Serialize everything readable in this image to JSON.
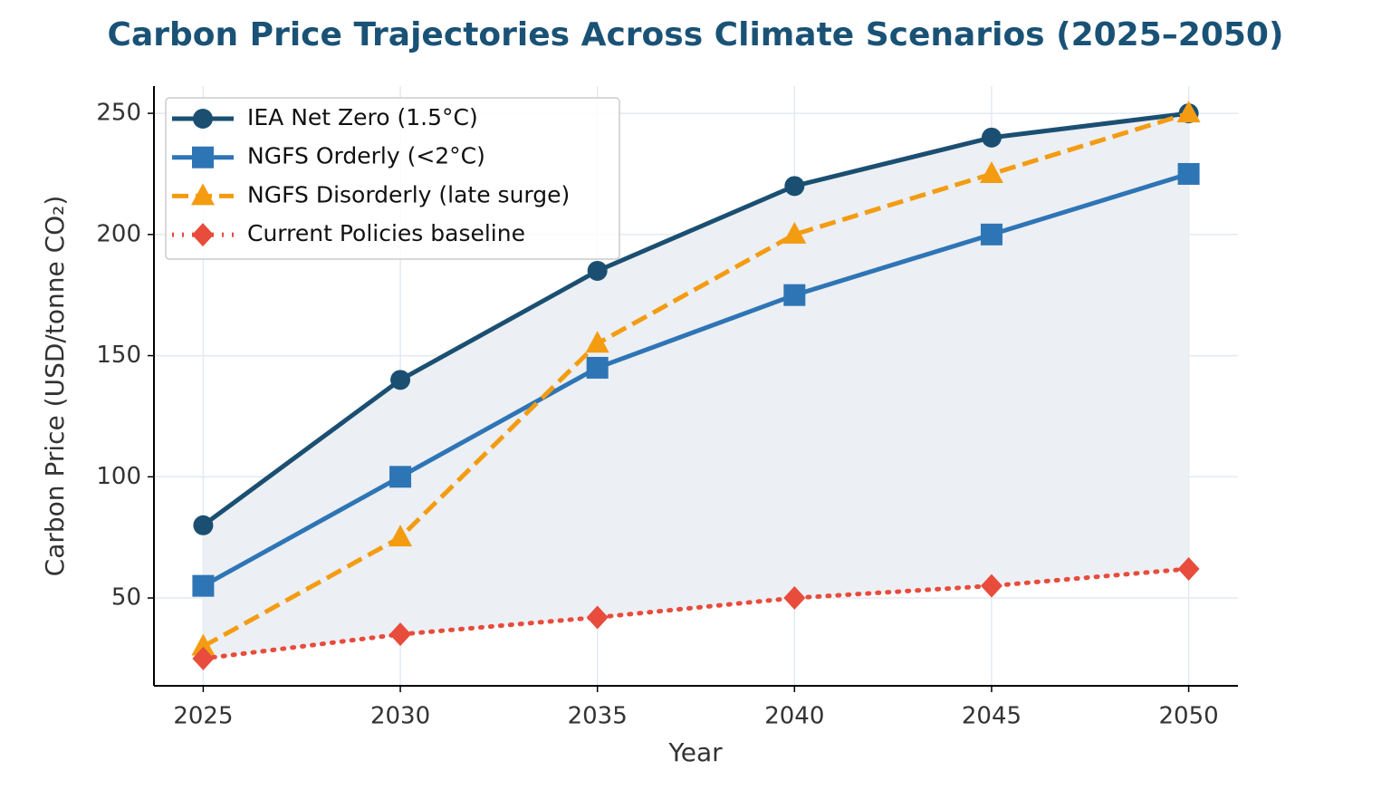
{
  "chart_data": {
    "type": "line",
    "title": "Carbon Price Trajectories Across Climate Scenarios (2025–2050)",
    "x_label": "Year",
    "y_label": "Carbon Price (USD/tonne CO₂)",
    "x": [
      2025,
      2030,
      2035,
      2040,
      2045,
      2050
    ],
    "series": [
      {
        "name": "IEA Net Zero (1.5°C)",
        "color": "#1b4f72",
        "marker": "circle",
        "dash": "solid",
        "values": [
          80,
          140,
          185,
          220,
          240,
          250
        ]
      },
      {
        "name": "NGFS Orderly (<2°C)",
        "color": "#2e75b6",
        "marker": "square",
        "dash": "solid",
        "values": [
          55,
          100,
          145,
          175,
          200,
          225
        ]
      },
      {
        "name": "NGFS Disorderly (late surge)",
        "color": "#f39c12",
        "marker": "triangle",
        "dash": "dashed",
        "values": [
          30,
          75,
          155,
          200,
          225,
          250
        ]
      },
      {
        "name": "Current Policies baseline",
        "color": "#e74c3c",
        "marker": "diamond",
        "dash": "dotted",
        "values": [
          25,
          35,
          42,
          50,
          55,
          62
        ]
      }
    ],
    "fill_between": {
      "series": [
        0,
        3
      ],
      "color": "#eceff3"
    },
    "xlim": [
      2023.75,
      2051.25
    ],
    "xticks": [
      2025,
      2030,
      2035,
      2040,
      2045,
      2050
    ],
    "ylim": [
      13.75,
      261.25
    ],
    "yticks": [
      50,
      100,
      150,
      200,
      250
    ],
    "grid": true,
    "legend": "upper-left"
  }
}
